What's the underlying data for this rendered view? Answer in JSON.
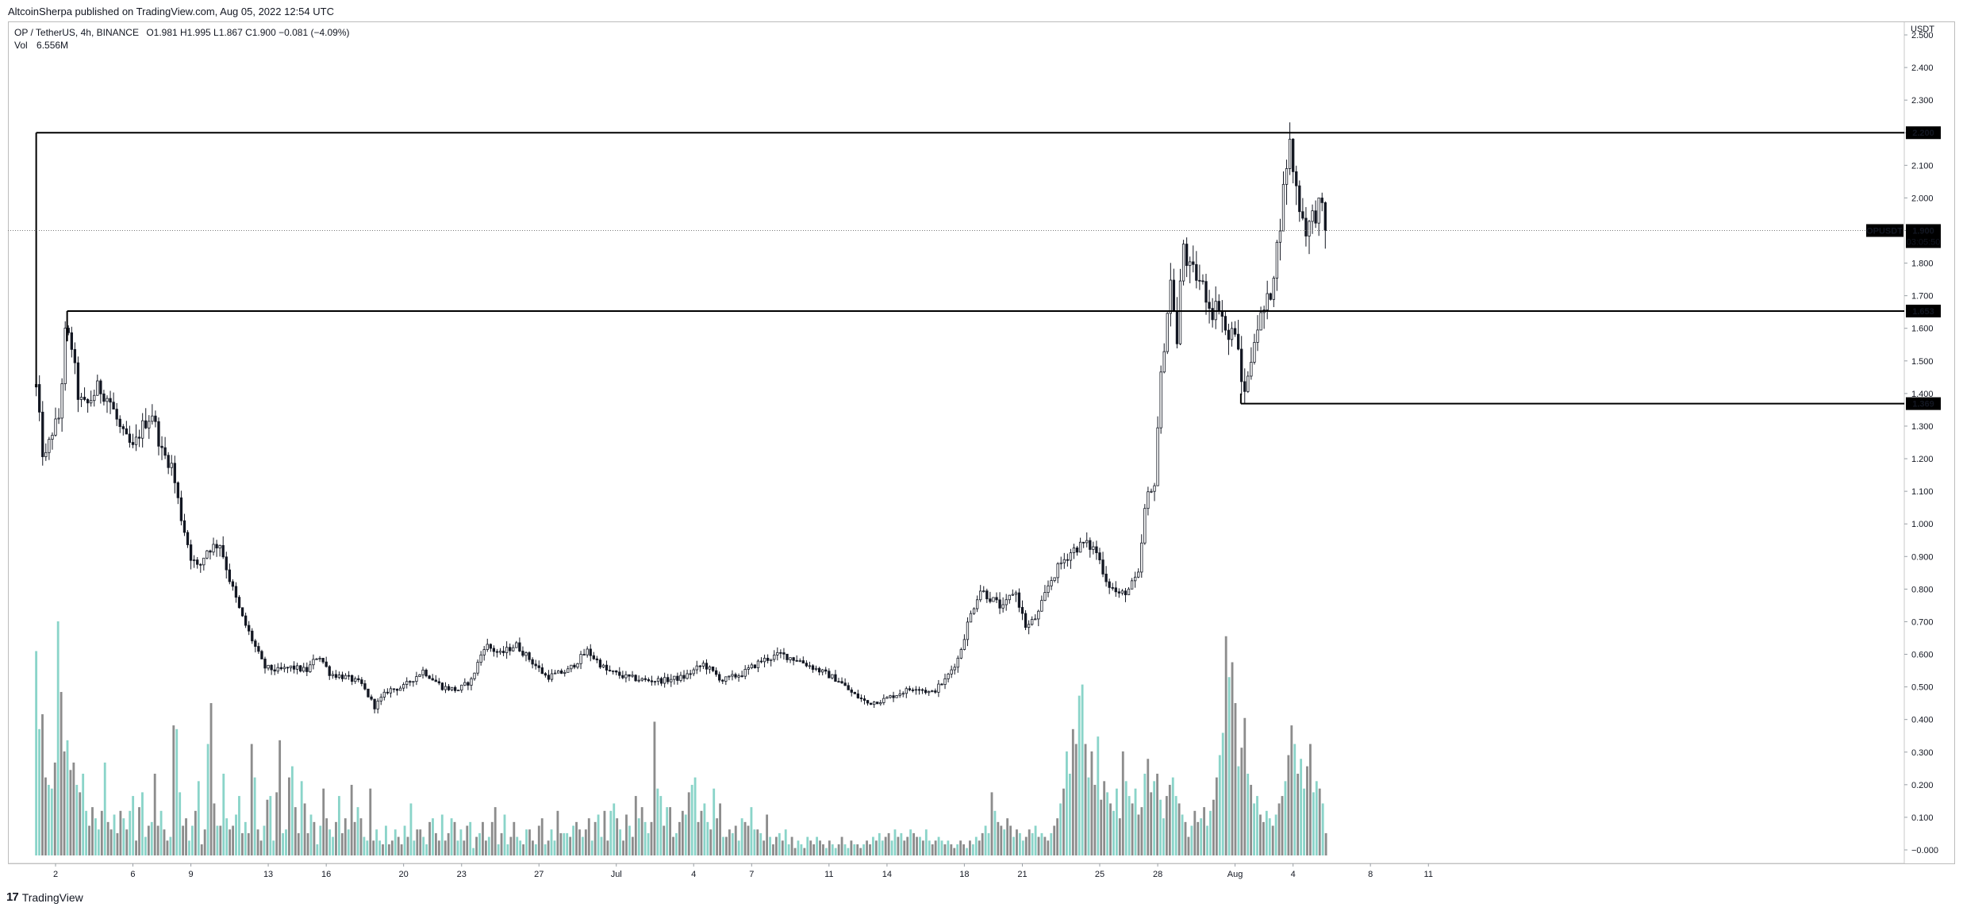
{
  "header": {
    "text": "AltcoinSherpa published on TradingView.com, Aug 05, 2022 12:54 UTC"
  },
  "legend": {
    "symbol": "OP / TetherUS, 4h, BINANCE",
    "ohlc": "O1.981  H1.995  L1.867  C1.900  −0.081 (−4.09%)",
    "volume_label": "Vol",
    "volume_value": "6.556M"
  },
  "footer": {
    "logo_text": "17",
    "brand": "TradingView"
  },
  "chart_data": {
    "type": "candlestick",
    "currency_label": "USDT",
    "y_ticks": [
      "2.500",
      "2.400",
      "2.300",
      "2.200",
      "2.100",
      "2.000",
      "1.900",
      "1.800",
      "1.700",
      "1.600",
      "1.500",
      "1.400",
      "1.300",
      "1.200",
      "1.100",
      "1.000",
      "0.900",
      "0.800",
      "0.700",
      "0.600",
      "0.500",
      "0.400",
      "0.300",
      "0.200",
      "0.100",
      "−0.000"
    ],
    "ylim": [
      -0.02,
      2.6
    ],
    "x_ticks": [
      {
        "label": "2",
        "day": 2
      },
      {
        "label": "6",
        "day": 6
      },
      {
        "label": "9",
        "day": 9
      },
      {
        "label": "13",
        "day": 13
      },
      {
        "label": "16",
        "day": 16
      },
      {
        "label": "20",
        "day": 20
      },
      {
        "label": "23",
        "day": 23
      },
      {
        "label": "27",
        "day": 27
      },
      {
        "label": "Jul",
        "day": 31
      },
      {
        "label": "4",
        "day": 35
      },
      {
        "label": "7",
        "day": 38
      },
      {
        "label": "11",
        "day": 42
      },
      {
        "label": "14",
        "day": 45
      },
      {
        "label": "18",
        "day": 49
      },
      {
        "label": "21",
        "day": 52
      },
      {
        "label": "25",
        "day": 56
      },
      {
        "label": "28",
        "day": 59
      },
      {
        "label": "Aug",
        "day": 63
      },
      {
        "label": "4",
        "day": 66
      },
      {
        "label": "8",
        "day": 70
      },
      {
        "label": "11",
        "day": 73
      }
    ],
    "levels": [
      {
        "value": 2.2,
        "label": "2.200"
      },
      {
        "value": 1.653,
        "label": "1.653"
      },
      {
        "value": 1.369,
        "label": "1.369"
      }
    ],
    "last_price": {
      "value": 1.9,
      "label": "1.900",
      "symbol": "OPUSDT",
      "countdown": "03:05:50"
    },
    "close_path": [
      [
        1.0,
        1.42
      ],
      [
        1.4,
        1.18
      ],
      [
        1.8,
        1.28
      ],
      [
        2.2,
        1.33
      ],
      [
        2.5,
        1.58
      ],
      [
        2.8,
        1.56
      ],
      [
        3.2,
        1.38
      ],
      [
        3.6,
        1.36
      ],
      [
        4.2,
        1.42
      ],
      [
        4.8,
        1.38
      ],
      [
        5.4,
        1.28
      ],
      [
        6.0,
        1.23
      ],
      [
        6.5,
        1.3
      ],
      [
        7.0,
        1.34
      ],
      [
        7.5,
        1.22
      ],
      [
        8.0,
        1.18
      ],
      [
        8.5,
        1.02
      ],
      [
        9.0,
        0.9
      ],
      [
        9.4,
        0.86
      ],
      [
        9.8,
        0.92
      ],
      [
        10.5,
        0.94
      ],
      [
        11.0,
        0.83
      ],
      [
        11.6,
        0.72
      ],
      [
        12.2,
        0.64
      ],
      [
        12.8,
        0.56
      ],
      [
        13.5,
        0.55
      ],
      [
        14.2,
        0.56
      ],
      [
        15.0,
        0.55
      ],
      [
        15.6,
        0.6
      ],
      [
        16.2,
        0.54
      ],
      [
        17.0,
        0.53
      ],
      [
        17.8,
        0.51
      ],
      [
        18.5,
        0.44
      ],
      [
        19.2,
        0.49
      ],
      [
        20.0,
        0.5
      ],
      [
        21.0,
        0.55
      ],
      [
        22.0,
        0.5
      ],
      [
        22.8,
        0.49
      ],
      [
        23.5,
        0.52
      ],
      [
        24.2,
        0.63
      ],
      [
        25.0,
        0.6
      ],
      [
        25.8,
        0.63
      ],
      [
        26.6,
        0.58
      ],
      [
        27.4,
        0.53
      ],
      [
        28.5,
        0.55
      ],
      [
        29.5,
        0.61
      ],
      [
        30.5,
        0.55
      ],
      [
        31.5,
        0.53
      ],
      [
        32.5,
        0.52
      ],
      [
        33.5,
        0.52
      ],
      [
        34.5,
        0.53
      ],
      [
        35.5,
        0.57
      ],
      [
        36.5,
        0.52
      ],
      [
        37.5,
        0.54
      ],
      [
        38.5,
        0.58
      ],
      [
        39.5,
        0.6
      ],
      [
        40.5,
        0.58
      ],
      [
        41.5,
        0.55
      ],
      [
        42.5,
        0.52
      ],
      [
        43.2,
        0.48
      ],
      [
        44.0,
        0.45
      ],
      [
        44.8,
        0.46
      ],
      [
        45.6,
        0.48
      ],
      [
        46.5,
        0.5
      ],
      [
        47.3,
        0.48
      ],
      [
        48.0,
        0.52
      ],
      [
        48.7,
        0.59
      ],
      [
        49.2,
        0.7
      ],
      [
        49.8,
        0.8
      ],
      [
        50.4,
        0.77
      ],
      [
        51.0,
        0.74
      ],
      [
        51.6,
        0.8
      ],
      [
        52.2,
        0.68
      ],
      [
        52.8,
        0.72
      ],
      [
        53.4,
        0.82
      ],
      [
        54.0,
        0.88
      ],
      [
        54.6,
        0.92
      ],
      [
        55.2,
        0.94
      ],
      [
        55.8,
        0.92
      ],
      [
        56.4,
        0.82
      ],
      [
        57.0,
        0.78
      ],
      [
        57.5,
        0.8
      ],
      [
        58.0,
        0.84
      ],
      [
        58.4,
        1.08
      ],
      [
        58.8,
        1.1
      ],
      [
        59.1,
        1.4
      ],
      [
        59.4,
        1.6
      ],
      [
        59.7,
        1.76
      ],
      [
        60.0,
        1.55
      ],
      [
        60.3,
        1.87
      ],
      [
        60.6,
        1.78
      ],
      [
        61.0,
        1.76
      ],
      [
        61.4,
        1.72
      ],
      [
        61.8,
        1.65
      ],
      [
        62.2,
        1.68
      ],
      [
        62.6,
        1.56
      ],
      [
        63.0,
        1.6
      ],
      [
        63.4,
        1.4
      ],
      [
        63.7,
        1.45
      ],
      [
        64.0,
        1.58
      ],
      [
        64.4,
        1.64
      ],
      [
        64.8,
        1.7
      ],
      [
        65.2,
        1.86
      ],
      [
        65.5,
        2.02
      ],
      [
        65.8,
        2.18
      ],
      [
        66.1,
        2.05
      ],
      [
        66.4,
        1.96
      ],
      [
        66.7,
        1.9
      ],
      [
        67.0,
        1.94
      ],
      [
        67.4,
        1.98
      ],
      [
        67.7,
        1.9
      ]
    ],
    "volume": [
      0.55,
      0.34,
      0.38,
      0.21,
      0.19,
      0.18,
      0.25,
      0.63,
      0.44,
      0.28,
      0.31,
      0.23,
      0.25,
      0.19,
      0.17,
      0.22,
      0.12,
      0.08,
      0.13,
      0.1,
      0.07,
      0.12,
      0.25,
      0.09,
      0.07,
      0.11,
      0.06,
      0.12,
      0.1,
      0.07,
      0.12,
      0.16,
      0.04,
      0.13,
      0.17,
      0.05,
      0.08,
      0.09,
      0.22,
      0.08,
      0.12,
      0.07,
      0.04,
      0.05,
      0.35,
      0.34,
      0.17,
      0.08,
      0.1,
      0.04,
      0.08,
      0.12,
      0.2,
      0.03,
      0.07,
      0.3,
      0.41,
      0.14,
      0.08,
      0.08,
      0.22,
      0.1,
      0.07,
      0.08,
      0.11,
      0.16,
      0.06,
      0.09,
      0.06,
      0.3,
      0.21,
      0.07,
      0.04,
      0.08,
      0.15,
      0.16,
      0.04,
      0.17,
      0.31,
      0.06,
      0.07,
      0.21,
      0.24,
      0.13,
      0.06,
      0.2,
      0.14,
      0.06,
      0.11,
      0.09,
      0.03,
      0.08,
      0.18,
      0.1,
      0.07,
      0.05,
      0.09,
      0.16,
      0.06,
      0.1,
      0.07,
      0.19,
      0.09,
      0.13,
      0.1,
      0.05,
      0.04,
      0.18,
      0.04,
      0.07,
      0.04,
      0.03,
      0.08,
      0.03,
      0.04,
      0.07,
      0.05,
      0.03,
      0.08,
      0.05,
      0.14,
      0.04,
      0.07,
      0.07,
      0.05,
      0.03,
      0.09,
      0.1,
      0.06,
      0.04,
      0.11,
      0.04,
      0.06,
      0.1,
      0.09,
      0.04,
      0.07,
      0.04,
      0.08,
      0.09,
      0.02,
      0.05,
      0.06,
      0.09,
      0.04,
      0.05,
      0.09,
      0.13,
      0.03,
      0.06,
      0.11,
      0.03,
      0.05,
      0.09,
      0.05,
      0.04,
      0.03,
      0.07,
      0.07,
      0.04,
      0.03,
      0.08,
      0.1,
      0.03,
      0.04,
      0.07,
      0.04,
      0.12,
      0.06,
      0.06,
      0.06,
      0.05,
      0.08,
      0.09,
      0.07,
      0.05,
      0.07,
      0.1,
      0.04,
      0.09,
      0.11,
      0.05,
      0.12,
      0.04,
      0.12,
      0.14,
      0.1,
      0.07,
      0.04,
      0.11,
      0.08,
      0.05,
      0.16,
      0.1,
      0.13,
      0.09,
      0.06,
      0.09,
      0.36,
      0.18,
      0.16,
      0.08,
      0.13,
      0.13,
      0.05,
      0.06,
      0.09,
      0.12,
      0.11,
      0.17,
      0.19,
      0.21,
      0.09,
      0.12,
      0.14,
      0.09,
      0.07,
      0.18,
      0.1,
      0.14,
      0.05,
      0.05,
      0.07,
      0.06,
      0.08,
      0.04,
      0.1,
      0.09,
      0.08,
      0.13,
      0.07,
      0.07,
      0.06,
      0.04,
      0.11,
      0.05,
      0.03,
      0.05,
      0.06,
      0.04,
      0.07,
      0.03,
      0.05,
      0.02,
      0.04,
      0.03,
      0.02,
      0.05,
      0.04,
      0.03,
      0.05,
      0.04,
      0.03,
      0.02,
      0.04,
      0.03,
      0.02,
      0.03,
      0.05,
      0.03,
      0.02,
      0.04,
      0.03,
      0.03,
      0.02,
      0.03,
      0.04,
      0.03,
      0.05,
      0.04,
      0.06,
      0.04,
      0.05,
      0.06,
      0.04,
      0.07,
      0.05,
      0.06,
      0.04,
      0.05,
      0.07,
      0.06,
      0.05,
      0.05,
      0.04,
      0.07,
      0.04,
      0.03,
      0.04,
      0.05,
      0.04,
      0.03,
      0.04,
      0.03,
      0.02,
      0.03,
      0.04,
      0.03,
      0.02,
      0.04,
      0.03,
      0.05,
      0.04,
      0.06,
      0.08,
      0.06,
      0.17,
      0.12,
      0.09,
      0.08,
      0.07,
      0.1,
      0.08,
      0.05,
      0.07,
      0.06,
      0.04,
      0.05,
      0.07,
      0.06,
      0.08,
      0.05,
      0.06,
      0.05,
      0.04,
      0.06,
      0.08,
      0.1,
      0.14,
      0.18,
      0.28,
      0.22,
      0.34,
      0.3,
      0.43,
      0.46,
      0.3,
      0.21,
      0.28,
      0.19,
      0.32,
      0.15,
      0.2,
      0.17,
      0.14,
      0.12,
      0.18,
      0.1,
      0.28,
      0.2,
      0.16,
      0.14,
      0.18,
      0.11,
      0.13,
      0.22,
      0.26,
      0.17,
      0.2,
      0.22,
      0.15,
      0.1,
      0.16,
      0.19,
      0.21,
      0.16,
      0.14,
      0.11,
      0.09,
      0.05,
      0.08,
      0.12,
      0.09,
      0.1,
      0.13,
      0.08,
      0.12,
      0.15,
      0.21,
      0.27,
      0.33,
      0.59,
      0.48,
      0.52,
      0.41,
      0.24,
      0.29,
      0.37,
      0.22,
      0.19,
      0.14,
      0.16,
      0.11,
      0.09,
      0.12,
      0.1,
      0.08,
      0.11,
      0.14,
      0.16,
      0.2,
      0.27,
      0.35,
      0.3,
      0.22,
      0.26,
      0.18,
      0.24,
      0.3,
      0.17,
      0.2,
      0.18,
      0.14,
      0.06
    ]
  }
}
